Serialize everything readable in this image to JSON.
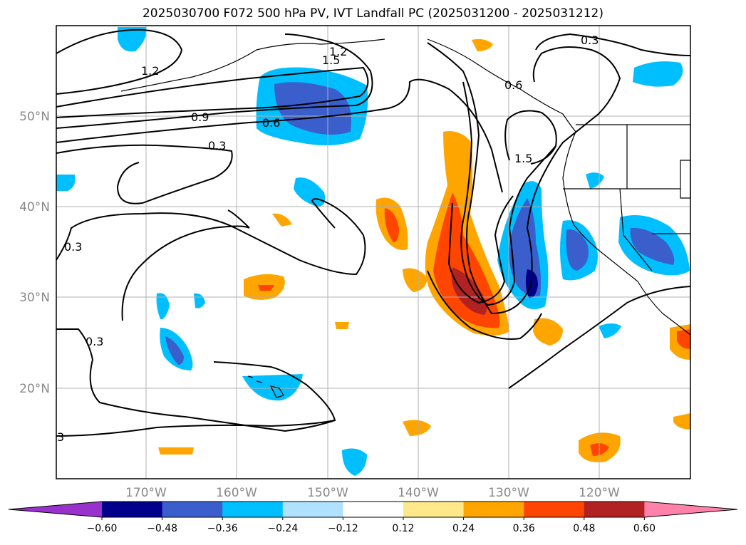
{
  "title": "2025030700 F072 500 hPa PV, IVT Landfall PC (2025031200 - 2025031212)",
  "map": {
    "lat_labels": [
      "50°N",
      "40°N",
      "30°N",
      "20°N"
    ],
    "lon_labels": [
      "170°W",
      "160°W",
      "150°W",
      "140°W",
      "130°W",
      "120°W"
    ],
    "contour_labels": [
      "1.2",
      "1.5",
      "1.2",
      "0.9",
      "0.6",
      "0.3",
      "0.3",
      "0.3",
      "0.3",
      "3",
      "1.5",
      "0.6"
    ]
  },
  "colorbar": {
    "ticks": [
      "−0.60",
      "−0.48",
      "−0.36",
      "−0.24",
      "−0.12",
      "0.12",
      "0.24",
      "0.36",
      "0.48",
      "0.60"
    ],
    "colors": [
      "#9932cc",
      "#00008b",
      "#3a5fcd",
      "#00bfff",
      "#b0e2ff",
      "#ffffff",
      "#ffe88a",
      "#ffa500",
      "#ff4500",
      "#b22222",
      "#ff82ab"
    ]
  }
}
